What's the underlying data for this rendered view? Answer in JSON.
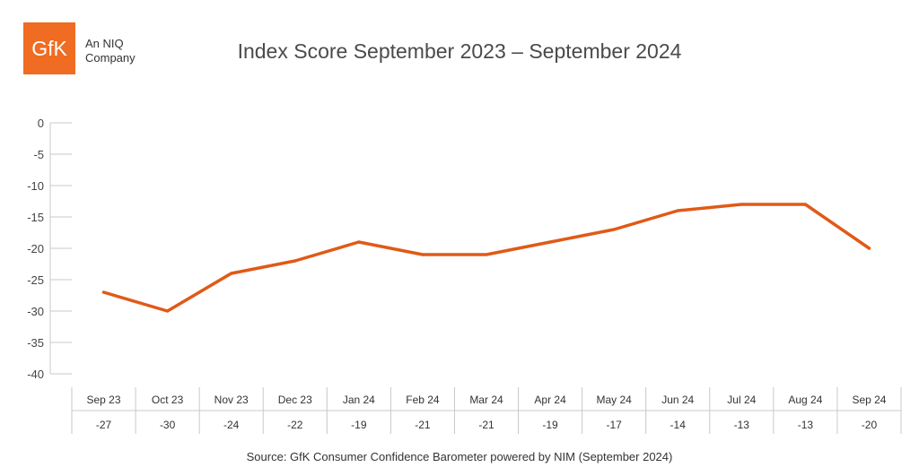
{
  "brand": {
    "logo_text": "GfK",
    "tagline_line1": "An NIQ",
    "tagline_line2": "Company",
    "color": "#ef6c22"
  },
  "source": "Source: GfK Consumer Confidence Barometer powered by NIM (September 2024)",
  "chart_data": {
    "type": "line",
    "title": "Index Score September 2023 – September 2024",
    "xlabel": "",
    "ylabel": "",
    "categories": [
      "Sep 23",
      "Oct 23",
      "Nov 23",
      "Dec 23",
      "Jan 24",
      "Feb 24",
      "Mar 24",
      "Apr 24",
      "May 24",
      "Jun 24",
      "Jul 24",
      "Aug 24",
      "Sep 24"
    ],
    "values": [
      -27,
      -30,
      -24,
      -22,
      -19,
      -21,
      -21,
      -19,
      -17,
      -14,
      -13,
      -13,
      -20
    ],
    "value_labels": [
      "-27",
      "-30",
      "-24",
      "-22",
      "-19",
      "-21",
      "-21",
      "-19",
      "-17",
      "-14",
      "-13",
      "-13",
      "-20"
    ],
    "ylim": [
      -40,
      0
    ],
    "yticks": [
      "0",
      "-5",
      "-10",
      "-15",
      "-20",
      "-25",
      "-30",
      "-35",
      "-40"
    ],
    "line_color": "#e05a17",
    "grid": false,
    "legend": "none",
    "data_table": true
  }
}
